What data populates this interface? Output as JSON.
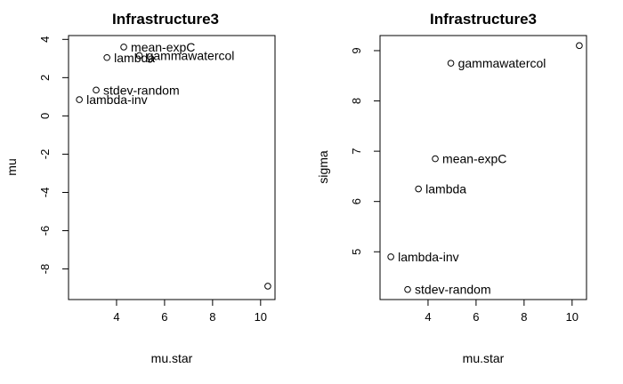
{
  "chart_data": [
    {
      "type": "scatter",
      "title": "Infrastructure3",
      "xlabel": "mu.star",
      "ylabel": "mu",
      "xlim": [
        2.0,
        10.6
      ],
      "ylim": [
        -9.6,
        4.2
      ],
      "xticks": [
        "4",
        "6",
        "8",
        "10"
      ],
      "yticks": [
        "4",
        "2",
        "0",
        "-2",
        "-4",
        "-6",
        "-8"
      ],
      "grid": false,
      "points": [
        {
          "label": "mean-expC",
          "x": 4.3,
          "y": 3.6
        },
        {
          "label": "gammawatercol",
          "x": 4.95,
          "y": 3.15
        },
        {
          "label": "lambda",
          "x": 3.6,
          "y": 3.05
        },
        {
          "label": "stdev-random",
          "x": 3.15,
          "y": 1.35
        },
        {
          "label": "lambda-inv",
          "x": 2.45,
          "y": 0.85
        },
        {
          "label": "",
          "x": 10.3,
          "y": -8.9
        }
      ]
    },
    {
      "type": "scatter",
      "title": "Infrastructure3",
      "xlabel": "mu.star",
      "ylabel": "sigma",
      "xlim": [
        2.0,
        10.6
      ],
      "ylim": [
        4.05,
        9.3
      ],
      "xticks": [
        "4",
        "6",
        "8",
        "10"
      ],
      "yticks": [
        "9",
        "8",
        "7",
        "6",
        "5"
      ],
      "grid": false,
      "points": [
        {
          "label": "",
          "x": 10.3,
          "y": 9.1
        },
        {
          "label": "gammawatercol",
          "x": 4.95,
          "y": 8.75
        },
        {
          "label": "mean-expC",
          "x": 4.3,
          "y": 6.85
        },
        {
          "label": "lambda",
          "x": 3.6,
          "y": 6.25
        },
        {
          "label": "lambda-inv",
          "x": 2.45,
          "y": 4.9
        },
        {
          "label": "stdev-random",
          "x": 3.15,
          "y": 4.25
        }
      ]
    }
  ]
}
